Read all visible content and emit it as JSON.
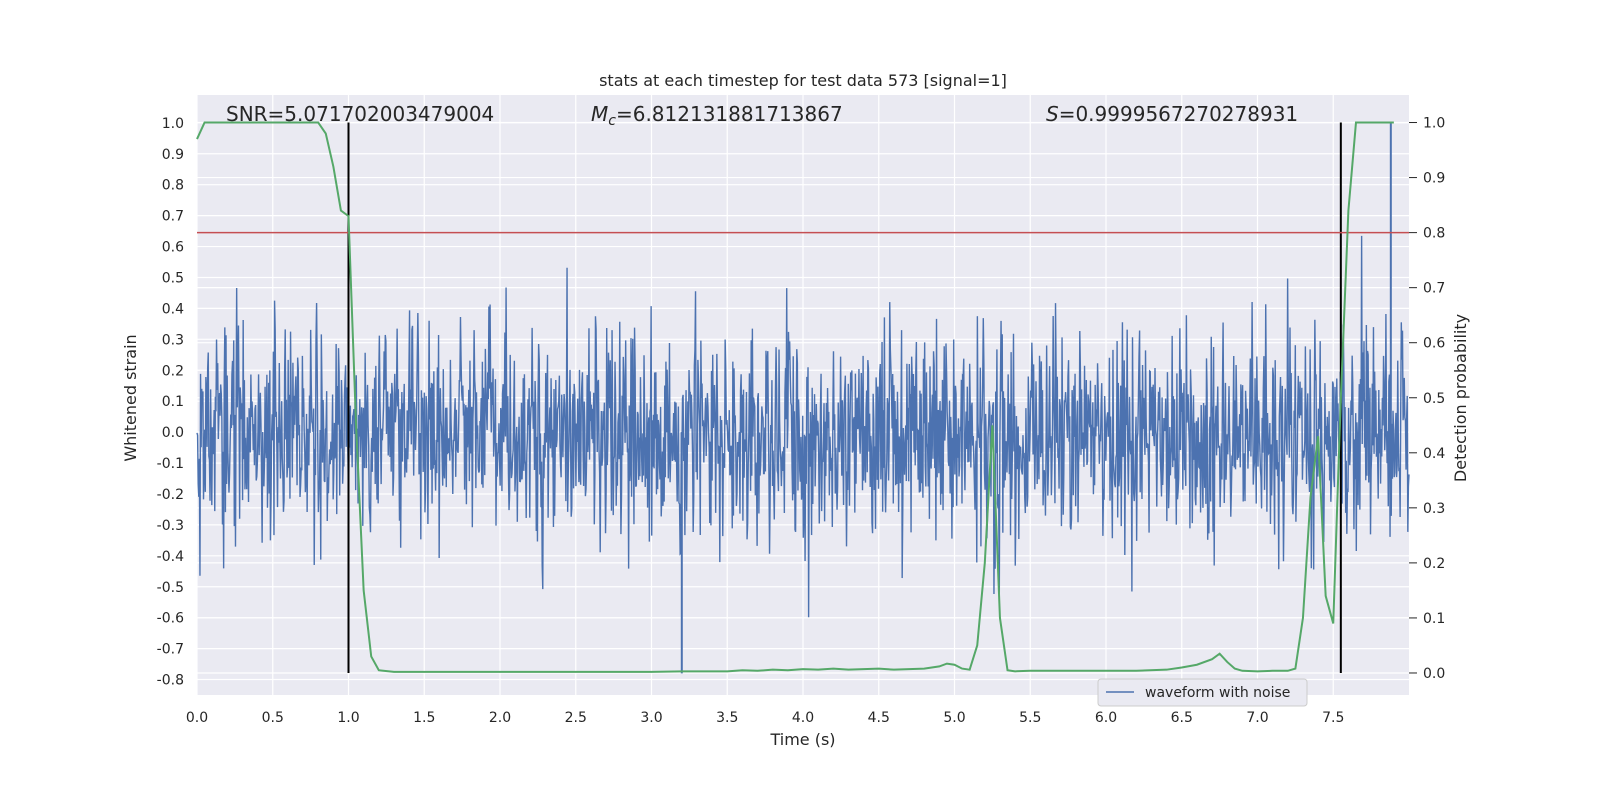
{
  "chart_data": {
    "type": "line",
    "title": "stats at each timestep for test data 573 [signal=1]",
    "xlabel": "Time (s)",
    "ylabel": "Whitened strain",
    "y2label": "Detection probability",
    "xlim": [
      0.0,
      8.0
    ],
    "ylim": [
      -0.85,
      1.09
    ],
    "y2lim": [
      -0.04,
      1.05
    ],
    "xticks": [
      "0.0",
      "0.5",
      "1.0",
      "1.5",
      "2.0",
      "2.5",
      "3.0",
      "3.5",
      "4.0",
      "4.5",
      "5.0",
      "5.5",
      "6.0",
      "6.5",
      "7.0",
      "7.5"
    ],
    "yticks": [
      "-0.8",
      "-0.7",
      "-0.6",
      "-0.5",
      "-0.4",
      "-0.3",
      "-0.2",
      "-0.1",
      "0.0",
      "0.1",
      "0.2",
      "0.3",
      "0.4",
      "0.5",
      "0.6",
      "0.7",
      "0.8",
      "0.9",
      "1.0"
    ],
    "y2ticks": [
      "0.0",
      "0.1",
      "0.2",
      "0.3",
      "0.4",
      "0.5",
      "0.6",
      "0.7",
      "0.8",
      "0.9",
      "1.0"
    ],
    "grid": true,
    "legend": {
      "placement": "lower-right",
      "entries": [
        "waveform with noise"
      ]
    },
    "annotations": {
      "snr_label": "SNR=5.071702003479004",
      "mc_prefix": "M",
      "mc_sub": "c",
      "mc_value": "=6.812131881713867",
      "s_prefix": "S",
      "s_value": "=0.9999567270278931"
    },
    "threshold_y2": 0.8,
    "vertical_markers_x": [
      1.0,
      7.55
    ],
    "waveform": {
      "name": "waveform with noise",
      "sample_count": 2048,
      "amplitude_envelope": [
        -0.78,
        1.0
      ],
      "seed": 573
    },
    "series": [
      {
        "name": "detection probability",
        "x": [
          0.0,
          0.05,
          0.1,
          0.15,
          0.2,
          0.25,
          0.3,
          0.35,
          0.4,
          0.45,
          0.5,
          0.55,
          0.6,
          0.65,
          0.7,
          0.75,
          0.8,
          0.85,
          0.9,
          0.95,
          1.0,
          1.05,
          1.1,
          1.15,
          1.2,
          1.3,
          1.5,
          1.75,
          2.0,
          2.5,
          3.0,
          3.2,
          3.5,
          3.6,
          3.7,
          3.8,
          3.9,
          4.0,
          4.1,
          4.2,
          4.3,
          4.4,
          4.5,
          4.6,
          4.7,
          4.8,
          4.9,
          4.95,
          5.0,
          5.05,
          5.1,
          5.15,
          5.2,
          5.25,
          5.3,
          5.35,
          5.4,
          5.5,
          5.6,
          5.8,
          6.0,
          6.2,
          6.4,
          6.5,
          6.6,
          6.7,
          6.75,
          6.8,
          6.85,
          6.9,
          7.0,
          7.1,
          7.2,
          7.25,
          7.3,
          7.35,
          7.4,
          7.45,
          7.5,
          7.55,
          7.6,
          7.65,
          7.7,
          7.75,
          7.8,
          7.85,
          7.9
        ],
        "values": [
          0.97,
          1.0,
          1.0,
          1.0,
          1.0,
          1.0,
          1.0,
          1.0,
          1.0,
          1.0,
          1.0,
          1.0,
          1.0,
          1.0,
          1.0,
          1.0,
          1.0,
          0.98,
          0.92,
          0.84,
          0.83,
          0.45,
          0.15,
          0.03,
          0.005,
          0.002,
          0.002,
          0.002,
          0.002,
          0.002,
          0.002,
          0.003,
          0.003,
          0.005,
          0.004,
          0.006,
          0.005,
          0.007,
          0.006,
          0.008,
          0.006,
          0.007,
          0.008,
          0.006,
          0.007,
          0.008,
          0.012,
          0.017,
          0.015,
          0.008,
          0.006,
          0.05,
          0.2,
          0.45,
          0.1,
          0.005,
          0.003,
          0.004,
          0.004,
          0.004,
          0.004,
          0.004,
          0.006,
          0.01,
          0.015,
          0.025,
          0.035,
          0.02,
          0.008,
          0.004,
          0.003,
          0.004,
          0.004,
          0.008,
          0.1,
          0.32,
          0.43,
          0.14,
          0.09,
          0.5,
          0.84,
          1.0,
          1.0,
          1.0,
          1.0,
          1.0,
          1.0
        ]
      }
    ]
  }
}
